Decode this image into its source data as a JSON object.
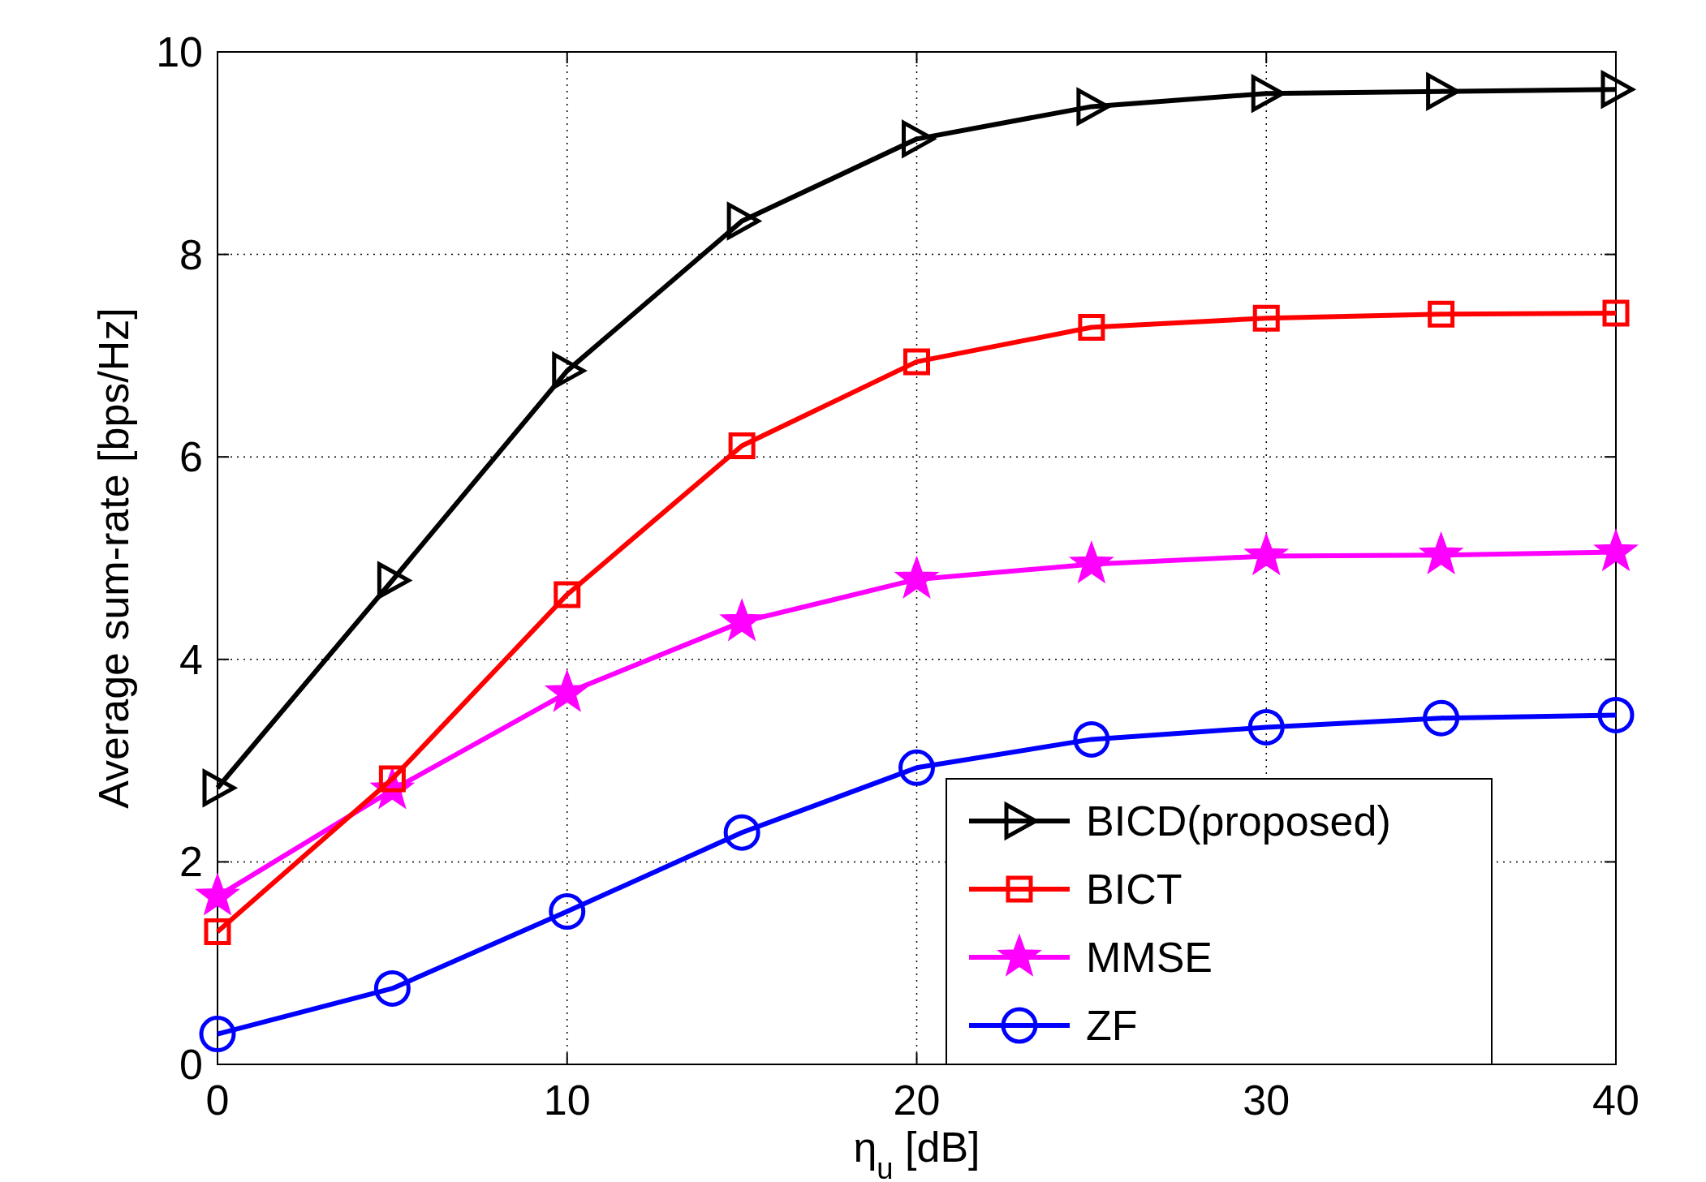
{
  "chart_data": {
    "type": "line",
    "xlabel": "η$_{u}$ [dB]",
    "ylabel": "Average sum-rate [bps/Hz]",
    "x": [
      0,
      5,
      10,
      15,
      20,
      25,
      30,
      35,
      40
    ],
    "xlim": [
      0,
      40
    ],
    "xticks": [
      0,
      10,
      20,
      30,
      40
    ],
    "ylim": [
      0,
      10
    ],
    "yticks": [
      0,
      2,
      4,
      6,
      8,
      10
    ],
    "grid": true,
    "legend": "bottom right",
    "line_style": "solid",
    "series": [
      {
        "name": "BICD(proposed)",
        "color": "#000000",
        "marker": "triangle",
        "values": [
          2.73,
          4.78,
          6.85,
          8.33,
          9.14,
          9.46,
          9.59,
          9.61,
          9.63
        ]
      },
      {
        "name": "BICT",
        "color": "#ff0000",
        "marker": "square",
        "values": [
          1.31,
          2.82,
          4.64,
          6.11,
          6.94,
          7.28,
          7.37,
          7.41,
          7.42
        ]
      },
      {
        "name": "MMSE",
        "color": "#ff00ff",
        "marker": "star",
        "values": [
          1.66,
          2.71,
          3.67,
          4.37,
          4.79,
          4.94,
          5.02,
          5.03,
          5.06
        ]
      },
      {
        "name": "ZF",
        "color": "#0000ff",
        "marker": "circle",
        "values": [
          0.3,
          0.75,
          1.51,
          2.29,
          2.93,
          3.21,
          3.33,
          3.42,
          3.45
        ]
      }
    ]
  }
}
